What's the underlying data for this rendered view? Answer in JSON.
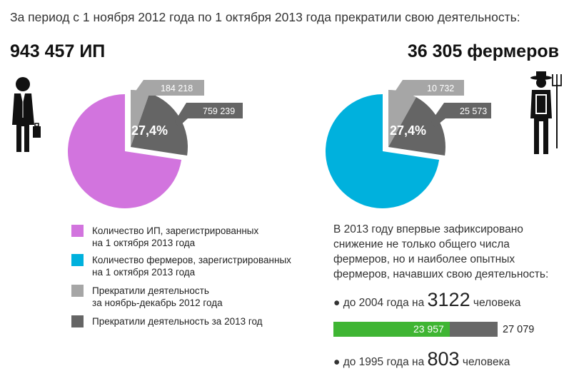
{
  "heading": "За период с 1 ноября 2012 года по 1 октября 2013 года прекратили свою деятельность:",
  "left_title": "943 457 ИП",
  "right_title": "36 305 фермеров",
  "colors": {
    "ip_registered": "#d274de",
    "farmers_registered": "#00b1dd",
    "closed_2012": "#a6a6a6",
    "closed_2013": "#656565",
    "bar_fill": "#3fb533",
    "bar_rest": "#676767"
  },
  "chart_data": [
    {
      "type": "pie",
      "center_label": "27,4%",
      "slices": [
        {
          "name": "Количество ИП, зарегистрированных на 1 октября 2013 года",
          "value": 72.6,
          "color": "#d274de"
        },
        {
          "name": "Прекратили деятельность за ноябрь-декабрь 2012 года",
          "value": 184218,
          "label": "184 218",
          "color": "#a6a6a6"
        },
        {
          "name": "Прекратили деятельность за 2013 год",
          "value": 759239,
          "label": "759 239",
          "color": "#656565"
        }
      ],
      "closed_share_percent": 27.4
    },
    {
      "type": "pie",
      "center_label": "27,4%",
      "slices": [
        {
          "name": "Количество фермеров, зарегистрированных на 1 октября 2013 года",
          "value": 72.6,
          "color": "#00b1dd"
        },
        {
          "name": "Прекратили деятельность за ноябрь-декабрь 2012 года",
          "value": 10732,
          "label": "10 732",
          "color": "#a6a6a6"
        },
        {
          "name": "Прекратили деятельность за 2013 год",
          "value": 25573,
          "label": "25 573",
          "color": "#656565"
        }
      ],
      "closed_share_percent": 27.4
    },
    {
      "type": "bar",
      "orientation": "horizontal",
      "part_value": 23957,
      "part_label": "23 957",
      "total_value": 27079,
      "total_label": "27 079",
      "colors": [
        "#3fb533",
        "#676767"
      ]
    }
  ],
  "legend": [
    {
      "lines": [
        "Количество ИП, зарегистрированных",
        "на 1 октября 2013 года"
      ],
      "color": "#d274de"
    },
    {
      "lines": [
        "Количество фермеров, зарегистрированных",
        "на 1 октября 2013 года"
      ],
      "color": "#00b1dd"
    },
    {
      "lines": [
        "Прекратили деятельность",
        "за ноябрь-декабрь 2012 года"
      ],
      "color": "#a6a6a6"
    },
    {
      "lines": [
        "Прекратили деятельность за 2013 год"
      ],
      "color": "#656565"
    }
  ],
  "note_lines": [
    "В 2013 году впервые зафиксировано",
    "снижение не только общего числа",
    "фермеров, но и наиболее опытных",
    "фермеров, начавших свою деятельность:"
  ],
  "bullets": [
    {
      "prefix": "до 2004 года на",
      "number": "3122",
      "suffix": "человека"
    },
    {
      "prefix": "до 1995 года на",
      "number": "803",
      "suffix": "человека"
    }
  ],
  "icons": {
    "left": "businessman-icon",
    "right": "farmer-icon"
  }
}
